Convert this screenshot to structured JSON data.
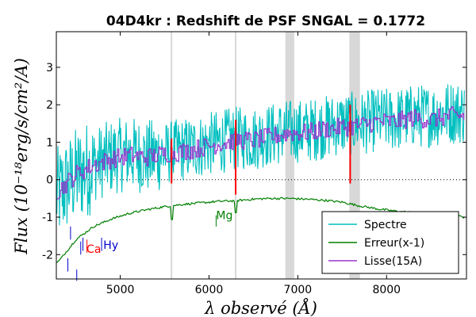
{
  "chart_data": {
    "type": "line",
    "title": "04D4kr : Redshift de PSF SNGAL = 0.1772",
    "xlabel": "λ observé (Å)",
    "ylabel": "Flux (10⁻¹⁸erg/s/cm²/A)",
    "xlim": [
      4280,
      8900
    ],
    "ylim": [
      -2.65,
      3.95
    ],
    "x_ticks": [
      5000,
      6000,
      7000,
      8000
    ],
    "x_tick_labels": [
      "5000",
      "6000",
      "7000",
      "8000"
    ],
    "y_ticks": [
      -2,
      -1,
      0,
      1,
      2,
      3
    ],
    "y_tick_labels": [
      "-2",
      "-1",
      "0",
      "1",
      "2",
      "3"
    ],
    "zero_line": true,
    "legend_position": "lower-right",
    "bands": [
      {
        "type": "line",
        "x": 5577,
        "color": "#d8d8d8"
      },
      {
        "type": "line",
        "x": 6300,
        "color": "#d8d8d8"
      },
      {
        "type": "span",
        "x0": 6860,
        "x1": 6960,
        "color": "#d8d8d8"
      },
      {
        "type": "span",
        "x0": 7580,
        "x1": 7700,
        "color": "#d8d8d8"
      }
    ],
    "series": [
      {
        "name": "Spectre",
        "color": "#00bfbf",
        "x": [
          4300,
          4500,
          4700,
          4900,
          5100,
          5300,
          5500,
          5700,
          5900,
          6100,
          6300,
          6500,
          6700,
          6900,
          7100,
          7300,
          7500,
          7700,
          7900,
          8100,
          8300,
          8500,
          8700,
          8880
        ],
        "y": [
          -0.4,
          0.1,
          0.4,
          0.6,
          0.7,
          0.6,
          0.7,
          0.8,
          0.9,
          1.0,
          1.1,
          1.1,
          1.2,
          1.3,
          1.3,
          1.4,
          1.5,
          1.5,
          1.6,
          1.6,
          1.7,
          1.7,
          1.8,
          1.8
        ]
      },
      {
        "name": "Erreur(x-1)",
        "color": "#008000",
        "x": [
          4300,
          4500,
          4700,
          4900,
          5100,
          5300,
          5500,
          5700,
          5900,
          6100,
          6300,
          6500,
          6700,
          6900,
          7100,
          7300,
          7500,
          7700,
          7900,
          8100,
          8300,
          8500,
          8700,
          8880
        ],
        "y": [
          -2.2,
          -1.6,
          -1.25,
          -1.05,
          -0.9,
          -0.8,
          -0.72,
          -0.66,
          -0.62,
          -0.58,
          -0.56,
          -0.52,
          -0.5,
          -0.5,
          -0.52,
          -0.55,
          -0.6,
          -0.7,
          -0.78,
          -0.84,
          -0.88,
          -0.92,
          -0.96,
          -1.0
        ]
      },
      {
        "name": "Lisse(15A)",
        "color": "#9933cc",
        "x": [
          4300,
          4500,
          4700,
          4900,
          5100,
          5300,
          5500,
          5700,
          5900,
          6100,
          6300,
          6500,
          6700,
          6900,
          7100,
          7300,
          7500,
          7700,
          7900,
          8100,
          8300,
          8500,
          8700,
          8880
        ],
        "y": [
          -0.3,
          0.15,
          0.4,
          0.55,
          0.65,
          0.6,
          0.7,
          0.75,
          0.85,
          0.95,
          1.05,
          1.05,
          1.15,
          1.25,
          1.25,
          1.35,
          1.4,
          1.45,
          1.55,
          1.55,
          1.65,
          1.6,
          1.7,
          1.7
        ]
      }
    ],
    "emission_marks": [
      {
        "x": 5577,
        "y0": -0.1,
        "y1": 1.1,
        "color": "#ff0000"
      },
      {
        "x": 6300,
        "y0": -0.4,
        "y1": 1.6,
        "color": "#ff0000"
      },
      {
        "x": 7590,
        "y0": -0.1,
        "y1": 2.0,
        "color": "#ff0000"
      }
    ],
    "annotations": [
      {
        "text": "Ca",
        "x": 4620,
        "y": -1.95,
        "color": "#ff0000"
      },
      {
        "text": "Hy",
        "x": 4810,
        "y": -1.85,
        "color": "#0000cc"
      },
      {
        "text": "Mg",
        "x": 6080,
        "y": -1.05,
        "color": "#008000"
      }
    ],
    "marker_lines": [
      {
        "x": 4410,
        "y0": -2.45,
        "y1": -2.1,
        "color": "#0000cc"
      },
      {
        "x": 4440,
        "y0": -1.6,
        "y1": -1.25,
        "color": "#0000cc"
      },
      {
        "x": 4510,
        "y0": -2.7,
        "y1": -2.4,
        "color": "#0000cc"
      },
      {
        "x": 4555,
        "y0": -2.0,
        "y1": -1.65,
        "color": "#0000cc"
      },
      {
        "x": 4580,
        "y0": -1.9,
        "y1": -1.55,
        "color": "#0000cc"
      },
      {
        "x": 4625,
        "y0": -1.95,
        "y1": -1.6,
        "color": "#ff0000"
      },
      {
        "x": 4790,
        "y0": -1.9,
        "y1": -1.55,
        "color": "#0000cc"
      },
      {
        "x": 6080,
        "y0": -1.25,
        "y1": -0.95,
        "color": "#008000"
      }
    ]
  }
}
